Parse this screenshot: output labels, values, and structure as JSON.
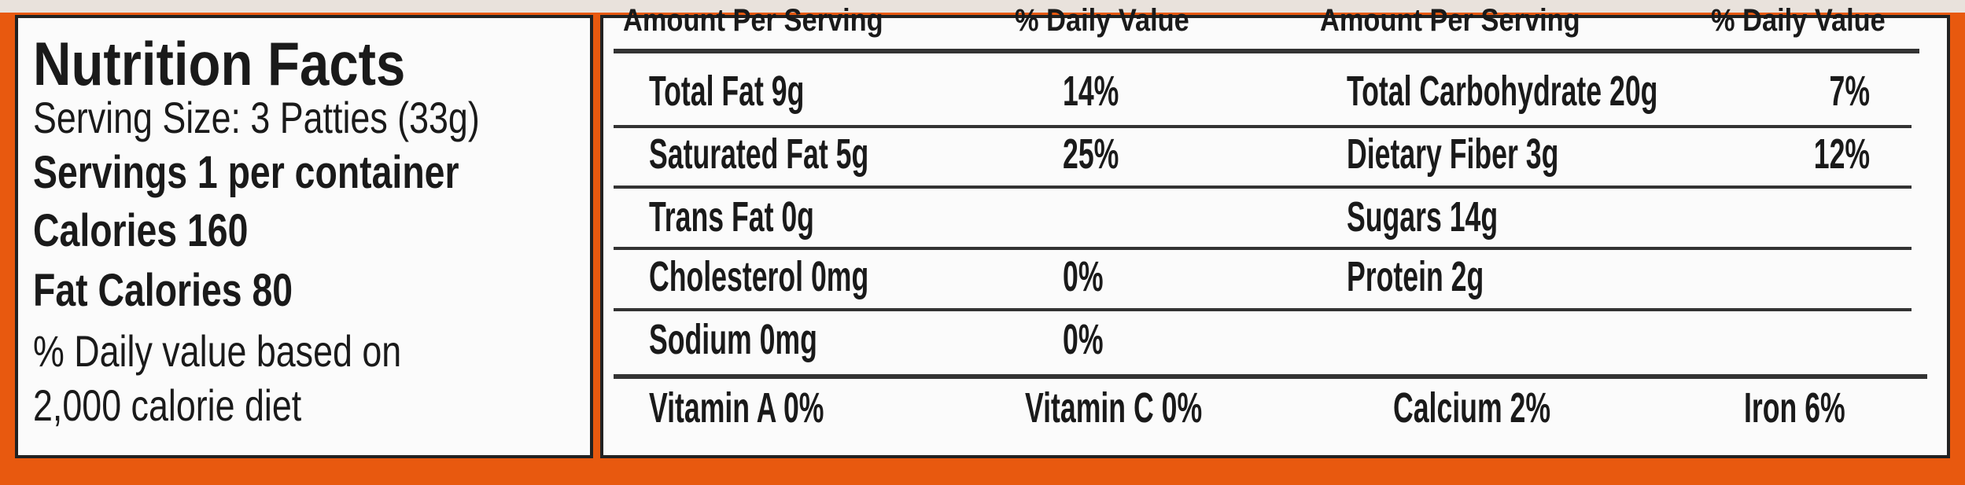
{
  "label": {
    "title": "Nutrition Facts",
    "serving_size": "Serving Size: 3 Patties (33g)",
    "servings": "Servings 1 per container",
    "calories": "Calories  160",
    "fat_calories": "Fat Calories 80",
    "footnote": [
      "% Daily value based on",
      "2,000 calorie diet"
    ],
    "header": [
      "Amount Per Serving",
      "% Daily Value",
      "Amount Per Serving",
      "% Daily Value"
    ],
    "rows": [
      {
        "left": {
          "label": "Total Fat 9g",
          "dv": "14%"
        },
        "right": {
          "label": "Total Carbohydrate 20g",
          "dv": "7%"
        }
      },
      {
        "left": {
          "label": "Saturated Fat 5g",
          "dv": "25%"
        },
        "right": {
          "label": "Dietary Fiber 3g",
          "dv": "12%"
        }
      },
      {
        "left": {
          "label": "Trans Fat 0g"
        },
        "right": {
          "label": "Sugars 14g"
        }
      },
      {
        "left": {
          "label": "Cholesterol 0mg",
          "dv": "0%"
        },
        "right": {
          "label": "Protein 2g"
        }
      },
      {
        "left": {
          "label": "Sodium 0mg",
          "dv": "0%"
        }
      }
    ],
    "vitamins": [
      "Vitamin A 0%",
      "Vitamin C 0%",
      "Calcium 2%",
      "Iron 6%"
    ]
  }
}
